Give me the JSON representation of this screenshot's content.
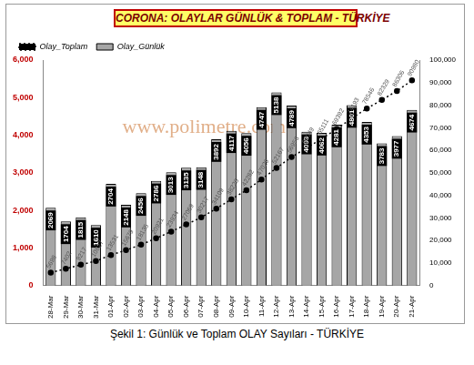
{
  "chart_data": {
    "type": "bar",
    "title": "CORONA: OLAYLAR GÜNLÜK & TOPLAM - TÜRKİYE",
    "caption": "Şekil 1: Günlük ve Toplam OLAY Sayıları - TÜRKİYE",
    "annotations": [
      "www.polimetre.com"
    ],
    "categories": [
      "28-Mar",
      "29-Mar",
      "30-Mar",
      "31-Mar",
      "01-Apr",
      "02-Apr",
      "03-Apr",
      "04-Apr",
      "05-Apr",
      "06-Apr",
      "07-Apr",
      "08-Apr",
      "09-Apr",
      "10-Apr",
      "11-Apr",
      "12-Apr",
      "13-Apr",
      "14-Apr",
      "15-Apr",
      "16-Apr",
      "17-Apr",
      "18-Apr",
      "19-Apr",
      "20-Apr",
      "21-Apr"
    ],
    "series": [
      {
        "name": "Olay_Günlük",
        "type": "bar",
        "color": "#a6a6a6",
        "values": [
          2069,
          1704,
          1815,
          1610,
          2704,
          2148,
          2456,
          2786,
          3013,
          3135,
          3148,
          3892,
          4117,
          4056,
          4747,
          5138,
          4789,
          4093,
          4062,
          4281,
          4801,
          4353,
          3783,
          3977,
          4674
        ]
      },
      {
        "name": "Olay_Toplam",
        "type": "line",
        "color": "#000000",
        "marker": "circle",
        "line_style": "dotted",
        "axis": "y2",
        "values": [
          5698,
          7402,
          9217,
          10827,
          13531,
          15679,
          18135,
          20921,
          23934,
          27069,
          30217,
          34109,
          38226,
          42282,
          47029,
          52167,
          56956,
          61049,
          65111,
          69392,
          74193,
          78546,
          82329,
          86306,
          90980
        ]
      }
    ],
    "ylim": [
      0,
      6000
    ],
    "yticks": [
      0,
      1000,
      2000,
      3000,
      4000,
      5000,
      6000
    ],
    "y2lim": [
      0,
      100000
    ],
    "y2ticks": [
      0,
      10000,
      20000,
      30000,
      40000,
      50000,
      60000,
      70000,
      80000,
      90000,
      100000
    ],
    "grid": false,
    "legend": "top-left",
    "data_labels": true
  }
}
